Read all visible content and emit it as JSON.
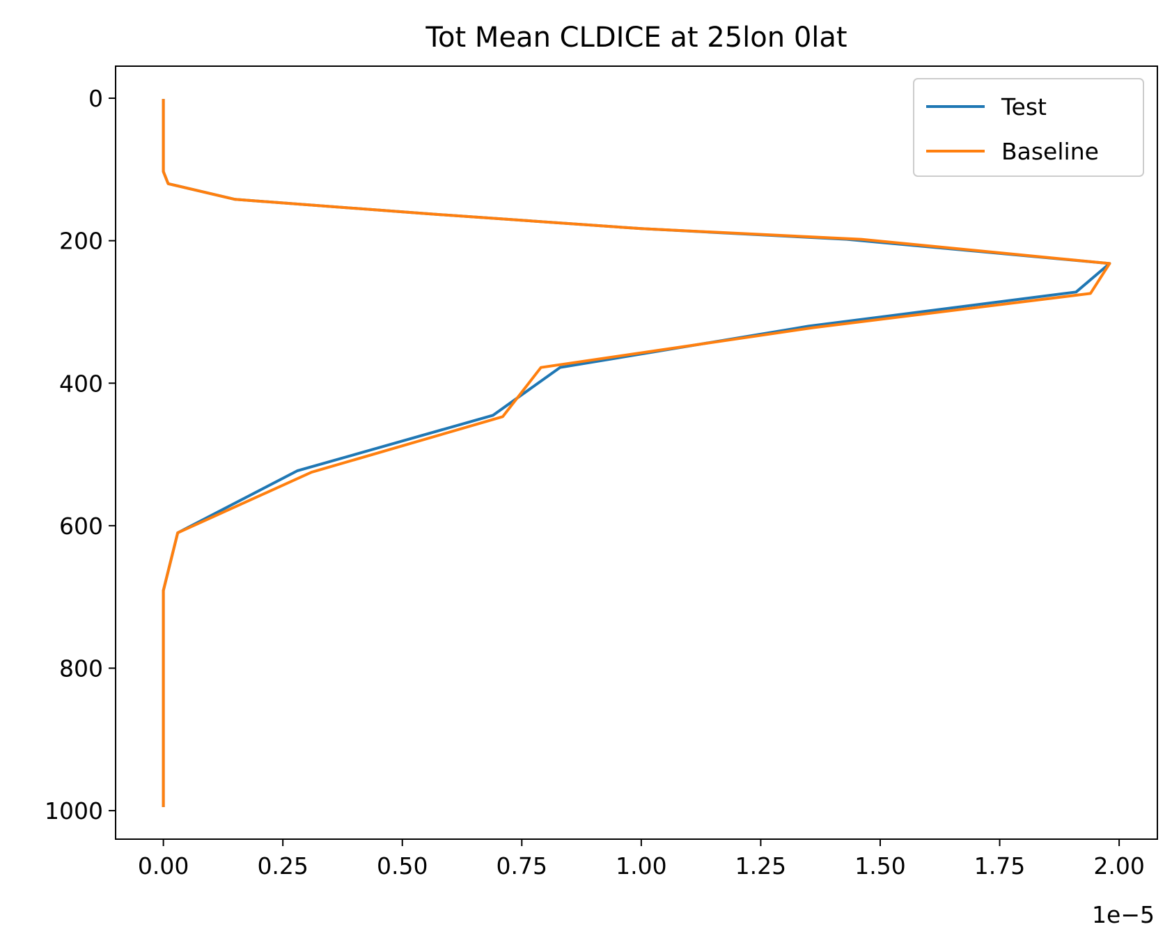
{
  "chart_data": {
    "type": "line",
    "title": "Tot Mean CLDICE at 25lon 0lat",
    "xlabel": "",
    "ylabel": "",
    "x_offset_label": "1e−5",
    "x_scale": 1e-05,
    "xlim": [
      -0.1,
      2.08
    ],
    "ylim": [
      1040,
      -45
    ],
    "y_inverted": true,
    "xticks": [
      0.0,
      0.25,
      0.5,
      0.75,
      1.0,
      1.25,
      1.5,
      1.75,
      2.0
    ],
    "xtick_labels": [
      "0.00",
      "0.25",
      "0.50",
      "0.75",
      "1.00",
      "1.25",
      "1.50",
      "1.75",
      "2.00"
    ],
    "yticks": [
      0,
      200,
      400,
      600,
      800,
      1000
    ],
    "ytick_labels": [
      "0",
      "200",
      "400",
      "600",
      "800",
      "1000"
    ],
    "legend_position": "top-right",
    "grid": false,
    "series": [
      {
        "name": "Test",
        "color": "#1f77b4",
        "x": [
          0.0,
          0.0,
          0.0,
          0.0,
          0.01,
          0.15,
          0.55,
          1.0,
          1.43,
          1.98,
          1.91,
          1.35,
          0.83,
          0.69,
          0.28,
          0.03,
          0.0,
          0.0
        ],
        "y": [
          3,
          50,
          88,
          103,
          120,
          142,
          162,
          183,
          198,
          232,
          272,
          320,
          378,
          445,
          523,
          610,
          691,
          993
        ]
      },
      {
        "name": "Baseline",
        "color": "#ff7f0e",
        "x": [
          0.0,
          0.0,
          0.0,
          0.0,
          0.01,
          0.15,
          0.55,
          1.0,
          1.46,
          1.98,
          1.94,
          1.36,
          0.79,
          0.71,
          0.31,
          0.03,
          0.0,
          0.0
        ],
        "y": [
          3,
          50,
          88,
          103,
          120,
          142,
          162,
          183,
          198,
          232,
          274,
          322,
          378,
          447,
          525,
          610,
          691,
          993
        ]
      }
    ]
  }
}
